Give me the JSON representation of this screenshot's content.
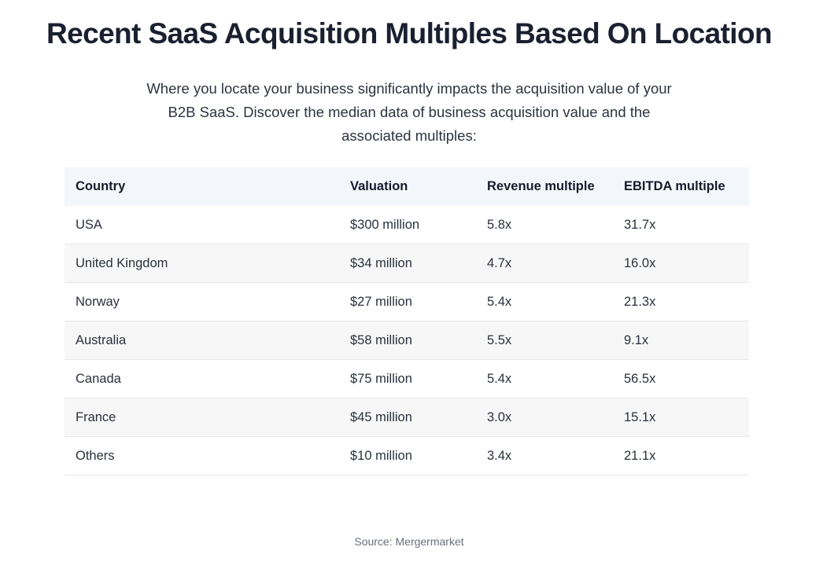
{
  "header": {
    "title": "Recent SaaS Acquisition Multiples Based On Location"
  },
  "intro": {
    "text": "Where you locate your business significantly impacts the acquisition value of your B2B SaaS. Discover the median data of business acquisition value and the associated multiples:"
  },
  "table": {
    "columns": [
      "Country",
      "Valuation",
      "Revenue multiple",
      "EBITDA multiple"
    ],
    "rows": [
      [
        "USA",
        "$300 million",
        "5.8x",
        "31.7x"
      ],
      [
        "United Kingdom",
        "$34 million",
        "4.7x",
        "16.0x"
      ],
      [
        "Norway",
        "$27 million",
        "5.4x",
        "21.3x"
      ],
      [
        "Australia",
        "$58 million",
        "5.5x",
        "9.1x"
      ],
      [
        "Canada",
        "$75 million",
        "5.4x",
        "56.5x"
      ],
      [
        "France",
        "$45 million",
        "3.0x",
        "15.1x"
      ],
      [
        "Others",
        "$10 million",
        "3.4x",
        "21.1x"
      ]
    ]
  },
  "footer": {
    "source": "Source: Mergermarket"
  },
  "colors": {
    "header_bg": "#f3f7fb",
    "stripe_bg": "#f7f7f7",
    "text": "#1f2430"
  }
}
